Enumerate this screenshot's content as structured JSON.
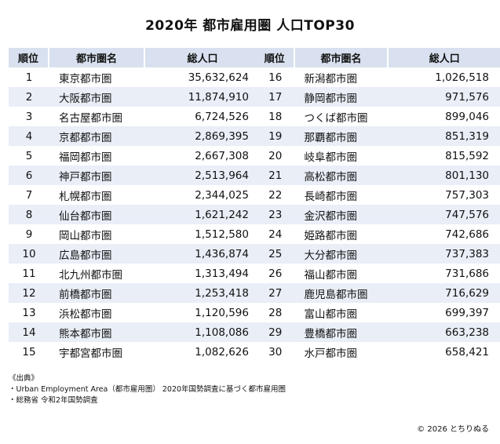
{
  "title": "2020年 都市雇用圏 人口TOP30",
  "headers": {
    "rank": "順位",
    "name": "都市圏名",
    "population": "総人口"
  },
  "left_rows": [
    {
      "rank": "1",
      "name": "東京都市圏",
      "population": "35,632,624"
    },
    {
      "rank": "2",
      "name": "大阪都市圏",
      "population": "11,874,910"
    },
    {
      "rank": "3",
      "name": "名古屋都市圏",
      "population": "6,724,526"
    },
    {
      "rank": "4",
      "name": "京都都市圏",
      "population": "2,869,395"
    },
    {
      "rank": "5",
      "name": "福岡都市圏",
      "population": "2,667,308"
    },
    {
      "rank": "6",
      "name": "神戸都市圏",
      "population": "2,513,964"
    },
    {
      "rank": "7",
      "name": "札幌都市圏",
      "population": "2,344,025"
    },
    {
      "rank": "8",
      "name": "仙台都市圏",
      "population": "1,621,242"
    },
    {
      "rank": "9",
      "name": "岡山都市圏",
      "population": "1,512,580"
    },
    {
      "rank": "10",
      "name": "広島都市圏",
      "population": "1,436,874"
    },
    {
      "rank": "11",
      "name": "北九州都市圏",
      "population": "1,313,494"
    },
    {
      "rank": "12",
      "name": "前橋都市圏",
      "population": "1,253,418"
    },
    {
      "rank": "13",
      "name": "浜松都市圏",
      "population": "1,120,596"
    },
    {
      "rank": "14",
      "name": "熊本都市圏",
      "population": "1,108,086"
    },
    {
      "rank": "15",
      "name": "宇都宮都市圏",
      "population": "1,082,626"
    }
  ],
  "right_rows": [
    {
      "rank": "16",
      "name": "新潟都市圏",
      "population": "1,026,518"
    },
    {
      "rank": "17",
      "name": "静岡都市圏",
      "population": "971,576"
    },
    {
      "rank": "18",
      "name": "つくば都市圏",
      "population": "899,046"
    },
    {
      "rank": "19",
      "name": "那覇都市圏",
      "population": "851,319"
    },
    {
      "rank": "20",
      "name": "岐阜都市圏",
      "population": "815,592"
    },
    {
      "rank": "21",
      "name": "高松都市圏",
      "population": "801,130"
    },
    {
      "rank": "22",
      "name": "長崎都市圏",
      "population": "757,303"
    },
    {
      "rank": "23",
      "name": "金沢都市圏",
      "population": "747,576"
    },
    {
      "rank": "24",
      "name": "姫路都市圏",
      "population": "742,686"
    },
    {
      "rank": "25",
      "name": "大分都市圏",
      "population": "737,383"
    },
    {
      "rank": "26",
      "name": "福山都市圏",
      "population": "731,686"
    },
    {
      "rank": "27",
      "name": "鹿児島都市圏",
      "population": "716,629"
    },
    {
      "rank": "28",
      "name": "富山都市圏",
      "population": "699,397"
    },
    {
      "rank": "29",
      "name": "豊橋都市圏",
      "population": "663,238"
    },
    {
      "rank": "30",
      "name": "水戸都市圏",
      "population": "658,421"
    }
  ],
  "footer": {
    "heading": "《出典》",
    "source1": "・Urban Employment Area（都市雇用圏） 2020年国勢調査に基づく都市雇用圏",
    "source2": "・総務省 令和2年国勢調査"
  },
  "copyright": "© 2026 とちりぬる",
  "colors": {
    "header_bg": "#d9e1f0",
    "stripe_bg": "#e9eef7"
  }
}
